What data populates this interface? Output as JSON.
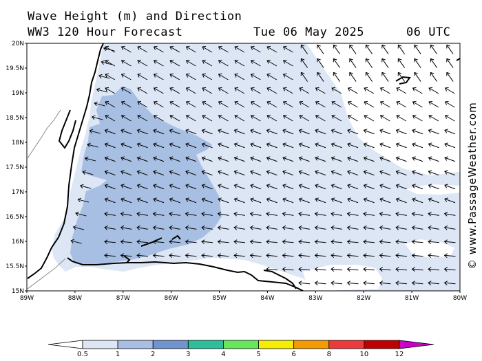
{
  "title": {
    "line1": "Wave Height (m) and Direction",
    "line2": "WW3 120 Hour Forecast",
    "date": "Tue 06 May 2025",
    "time": "06 UTC"
  },
  "map": {
    "lon_range": [
      -89,
      -80
    ],
    "lat_range": [
      15,
      20
    ],
    "lat_labels": [
      "20N",
      "19.5N",
      "19N",
      "18.5N",
      "18N",
      "17.5N",
      "17N",
      "16.5N",
      "16N",
      "15.5N",
      "15N"
    ],
    "lon_labels": [
      "89W",
      "88W",
      "87W",
      "86W",
      "85W",
      "84W",
      "83W",
      "82W",
      "81W",
      "80W"
    ],
    "wave_direction": "from east-southeast toward west-northwest"
  },
  "colorbar": {
    "labels": [
      "0.5",
      "1",
      "2",
      "3",
      "4",
      "5",
      "6",
      "8",
      "10",
      "12"
    ],
    "colors": [
      "#dde6f5",
      "#a7bfe2",
      "#6f94cf",
      "#2bbf9a",
      "#66e85a",
      "#f5ee00",
      "#f59a00",
      "#ee3a3a",
      "#c00000",
      "#c800c8"
    ]
  },
  "copyright": "© www.PassageWeather.com"
}
